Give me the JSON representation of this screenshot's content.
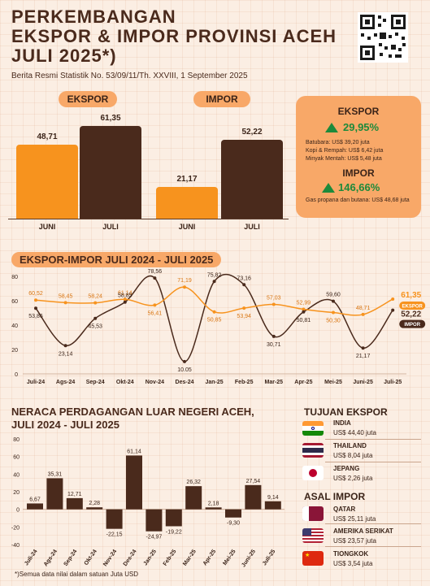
{
  "header": {
    "title_line1": "PERKEMBANGAN",
    "title_line2": "EKSPOR & IMPOR PROVINSI ACEH",
    "title_line3": "JULI 2025*)",
    "subtitle": "Berita Resmi Statistik No. 53/09/11/Th. XXVIII, 1 September 2025"
  },
  "top_bars": {
    "ekspor_label": "EKSPOR",
    "impor_label": "IMPOR",
    "ekspor": [
      {
        "cat": "JUNI",
        "value": "48,71",
        "num": 48.71
      },
      {
        "cat": "JULI",
        "value": "61,35",
        "num": 61.35
      }
    ],
    "impor": [
      {
        "cat": "JUNI",
        "value": "21,17",
        "num": 21.17
      },
      {
        "cat": "JULI",
        "value": "52,22",
        "num": 52.22
      }
    ]
  },
  "summary": {
    "ekspor_head": "EKSPOR",
    "ekspor_pct": "29,95%",
    "ekspor_items": [
      "Batubara: US$ 39,20 juta",
      "Kopi & Rempah: US$ 6,42 juta",
      "Minyak Mentah: US$ 5,48 juta"
    ],
    "impor_head": "IMPOR",
    "impor_pct": "146,66%",
    "impor_items": [
      "Gas propana dan butana: US$ 48,68 juta"
    ]
  },
  "colors": {
    "ekspor": "#f7931e",
    "impor": "#4a2a1c",
    "accent": "#f8a868",
    "up": "#1d8a3b"
  },
  "chart_data": [
    {
      "type": "line",
      "title": "EKSPOR-IMPOR JULI 2024 - JULI 2025",
      "categories": [
        "Juli-24",
        "Ags-24",
        "Sep-24",
        "Okt-24",
        "Nov-24",
        "Des-24",
        "Jan-25",
        "Feb-25",
        "Mar-25",
        "Apr-25",
        "Mei-25",
        "Juni-25",
        "Juli-25"
      ],
      "series": [
        {
          "name": "EKSPOR",
          "values": [
            60.52,
            58.45,
            58.24,
            61.14,
            56.41,
            71.19,
            50.85,
            53.94,
            57.03,
            52.99,
            50.3,
            48.71,
            61.35
          ],
          "labels": [
            "60,52",
            "58,45",
            "58,24",
            "61,14",
            "56,41",
            "71,19",
            "50,85",
            "53,94",
            "57,03",
            "52,99",
            "50,30",
            "48,71",
            "61,35"
          ]
        },
        {
          "name": "IMPOR",
          "values": [
            53.86,
            23.14,
            45.53,
            58.85,
            78.56,
            10.05,
            75.82,
            73.16,
            30.71,
            50.81,
            59.6,
            21.17,
            52.22
          ],
          "labels": [
            "53,86",
            "23,14",
            "45,53",
            "58,85",
            "78,56",
            "10.05",
            "75,82",
            "73,16",
            "30,71",
            "50,81",
            "59,60",
            "21,17",
            "52,22"
          ]
        }
      ],
      "yticks": [
        "0",
        "20",
        "40",
        "60",
        "80"
      ],
      "ylim": [
        0,
        80
      ]
    },
    {
      "type": "bar",
      "title": "NERACA PERDAGANGAN LUAR NEGERI ACEH, JULI 2024 - JULI 2025",
      "categories": [
        "Juli-24",
        "Ags-24",
        "Sep-24",
        "Okt-24",
        "Nov-24",
        "Des-24",
        "Jan-25",
        "Feb-25",
        "Mar-25",
        "Apr-25",
        "Mei-25",
        "Juni-25",
        "Juli-25"
      ],
      "values": [
        6.67,
        35.31,
        12.71,
        2.28,
        -22.15,
        61.14,
        -24.97,
        -19.22,
        26.32,
        2.18,
        -9.3,
        27.54,
        9.14
      ],
      "labels": [
        "6,67",
        "35,31",
        "12,71",
        "2,28",
        "-22,15",
        "61,14",
        "-24,97",
        "-19,22",
        "26,32",
        "2,18",
        "-9,30",
        "27,54",
        "9,14"
      ],
      "yticks": [
        "-40",
        "-20",
        "0",
        "20",
        "40",
        "60",
        "80"
      ],
      "ylim": [
        -40,
        80
      ]
    }
  ],
  "tujuan": {
    "head": "TUJUAN EKSPOR",
    "items": [
      {
        "name": "INDIA",
        "value": "US$ 44,40 juta"
      },
      {
        "name": "THAILAND",
        "value": "US$ 8,04 juta"
      },
      {
        "name": "JEPANG",
        "value": "US$ 2,26 juta"
      }
    ]
  },
  "asal": {
    "head": "ASAL IMPOR",
    "items": [
      {
        "name": "QATAR",
        "value": "US$ 25,11 juta"
      },
      {
        "name": "AMERIKA SERIKAT",
        "value": "US$ 23,57 juta"
      },
      {
        "name": "TIONGKOK",
        "value": "US$ 3,54 juta"
      }
    ]
  },
  "footnote": "*)Semua data nilai dalam satuan Juta USD"
}
